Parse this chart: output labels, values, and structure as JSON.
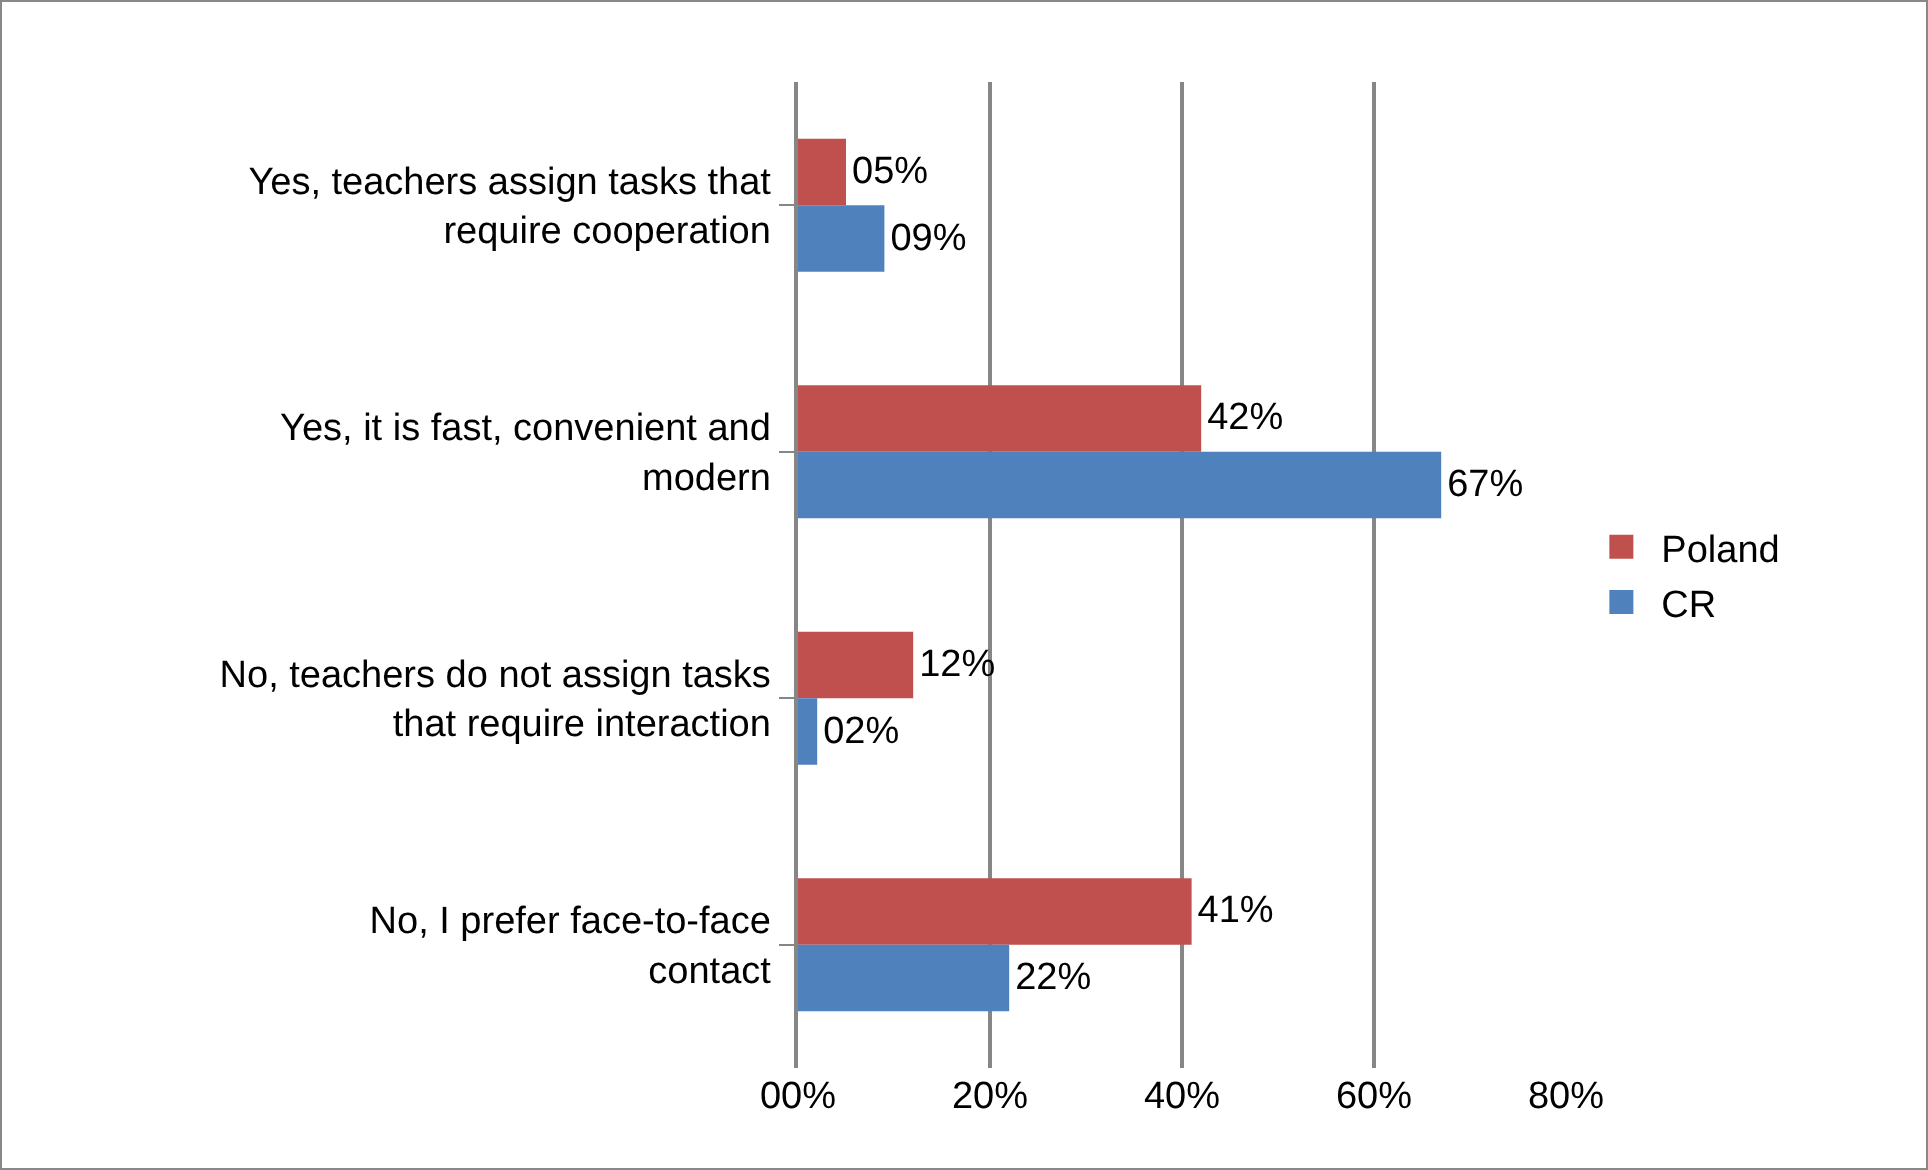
{
  "chart_data": {
    "type": "bar",
    "orientation": "horizontal",
    "categories": [
      "Yes, teachers assign tasks that require cooperation",
      "Yes, it is fast, convenient and modern",
      "No, teachers do not assign tasks that require interaction",
      "No, I prefer face-to-face contact"
    ],
    "series": [
      {
        "name": "Poland",
        "color": "#c0504d",
        "values": [
          5,
          42,
          12,
          41
        ],
        "value_labels": [
          "05%",
          "42%",
          "12%",
          "41%"
        ]
      },
      {
        "name": "CR",
        "color": "#4f81bd",
        "values": [
          9,
          67,
          2,
          22
        ],
        "value_labels": [
          "09%",
          "67%",
          "02%",
          "22%"
        ]
      }
    ],
    "xlim": [
      0,
      80
    ],
    "xticks": [
      {
        "value": 0,
        "label": "00%"
      },
      {
        "value": 20,
        "label": "20%"
      },
      {
        "value": 40,
        "label": "40%"
      },
      {
        "value": 60,
        "label": "60%"
      },
      {
        "value": 80,
        "label": "80%"
      }
    ],
    "grid": "x",
    "legend": "right"
  }
}
